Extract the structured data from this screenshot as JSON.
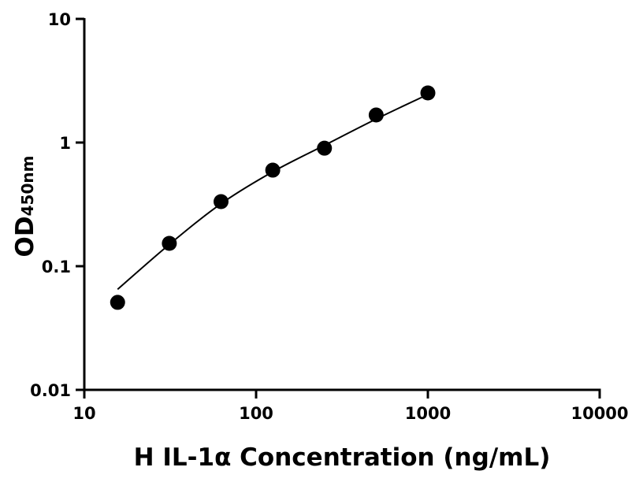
{
  "chart_data": {
    "type": "scatter",
    "title": "",
    "xlabel": "H IL-1α Concentration (ng/mL)",
    "ylabel_main": "OD",
    "ylabel_sub": "450nm",
    "xscale": "log",
    "yscale": "log",
    "xlim": [
      10,
      10000
    ],
    "ylim": [
      0.01,
      10
    ],
    "grid": false,
    "x_ticks": [
      10,
      100,
      1000,
      10000
    ],
    "x_tick_labels": [
      "10",
      "100",
      "1000",
      "10000"
    ],
    "y_ticks": [
      0.01,
      0.1,
      1,
      10
    ],
    "y_tick_labels": [
      "0.01",
      "0.1",
      "1",
      "10"
    ],
    "points": {
      "x": [
        15.625,
        31.25,
        62.5,
        125,
        250,
        500,
        1000
      ],
      "y": [
        0.051,
        0.153,
        0.333,
        0.598,
        0.9,
        1.67,
        2.52
      ]
    },
    "fit_curve": {
      "x": [
        15.625,
        31.25,
        62.5,
        125,
        250,
        500,
        1000
      ],
      "y": [
        0.065,
        0.15,
        0.32,
        0.58,
        0.95,
        1.55,
        2.45
      ]
    },
    "colors": {
      "points": "#000000",
      "line": "#000000",
      "axes": "#000000"
    }
  }
}
